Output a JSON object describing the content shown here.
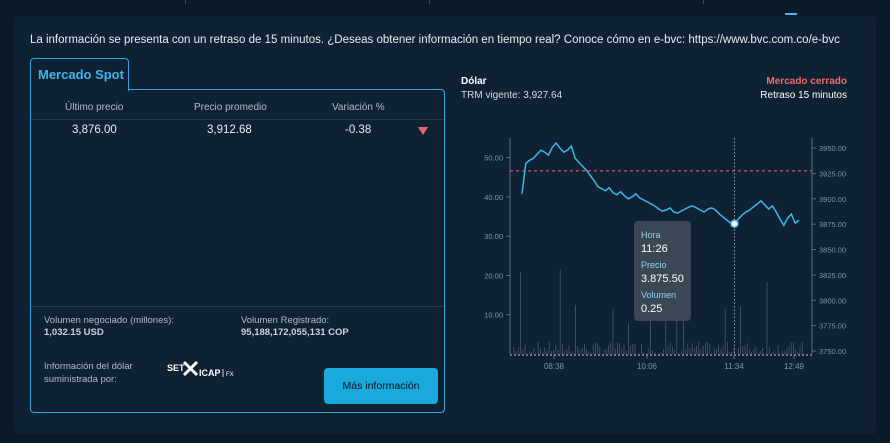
{
  "notice": "La información se presenta con un retraso de 15 minutos. ¿Deseas obtener información en tiempo real? Conoce cómo en e-bvc: https://www.bvc.com.co/e-bvc",
  "tab_label": "Mercado Spot",
  "table": {
    "headers": [
      "Último precio",
      "Precio promedio",
      "Variación %"
    ],
    "values": [
      "3,876.00",
      "3,912.68",
      "-0.38"
    ],
    "trend": "down",
    "trend_color": "#e0676a"
  },
  "stats": {
    "volumen_negociado_label": "Volumen negociado (millones):",
    "volumen_negociado_value": "1,032.15 USD",
    "volumen_registrado_label": "Volumen Registrado:",
    "volumen_registrado_value": "95,188,172,055,131 COP"
  },
  "provider": {
    "label": "Información del dólar suministrada por:",
    "logo_text_left": "SET",
    "logo_text_right": "ICAP",
    "logo_suffix": "FX"
  },
  "more_info_button": "Más información",
  "chart_header": {
    "title": "Dólar",
    "trm": "TRM vigente: 3,927.64",
    "status": "Mercado cerrado",
    "delay": "Retraso 15 minutos"
  },
  "tooltip": {
    "hora_label": "Hora",
    "hora_value": "11:26",
    "precio_label": "Precio",
    "precio_value": "3.875.50",
    "volumen_label": "Volumen",
    "volumen_value": "0.25"
  },
  "colors": {
    "accent": "#19a9dd",
    "line": "#3fb6ea",
    "reference_line": "#ee6b6b",
    "background": "#0f2233"
  },
  "chart_data": {
    "type": "line",
    "x_ticks": [
      "08:38",
      "10:06",
      "11:34",
      "12:49"
    ],
    "left_axis": {
      "ticks": [
        "10.00",
        "20.00",
        "30.00",
        "40.00",
        "50.00"
      ],
      "range": [
        0,
        55
      ]
    },
    "right_axis": {
      "ticks": [
        "3750.00",
        "3775.00",
        "3800.00",
        "3825.00",
        "3850.00",
        "3875.00",
        "3900.00",
        "3925.00",
        "3950.00"
      ],
      "range": [
        3747,
        3960
      ]
    },
    "reference_value": 3927.64,
    "highlight": {
      "time": "11:26",
      "price": 3875.5,
      "volume": 0.25
    },
    "price_series": [
      3905,
      3935,
      3938,
      3940,
      3944,
      3948,
      3946,
      3943,
      3951,
      3955,
      3950,
      3946,
      3948,
      3952,
      3940,
      3936,
      3932,
      3928,
      3923,
      3918,
      3912,
      3910,
      3908,
      3911,
      3906,
      3904,
      3907,
      3903,
      3900,
      3902,
      3905,
      3901,
      3899,
      3897,
      3895,
      3893,
      3890,
      3888,
      3889,
      3891,
      3887,
      3886,
      3888,
      3890,
      3892,
      3893,
      3891,
      3889,
      3887,
      3890,
      3891,
      3889,
      3885,
      3882,
      3879,
      3876,
      3875.5,
      3880,
      3884,
      3887,
      3889,
      3892,
      3895,
      3898,
      3894,
      3890,
      3893,
      3887,
      3880,
      3874,
      3881,
      3885,
      3876,
      3879
    ]
  }
}
